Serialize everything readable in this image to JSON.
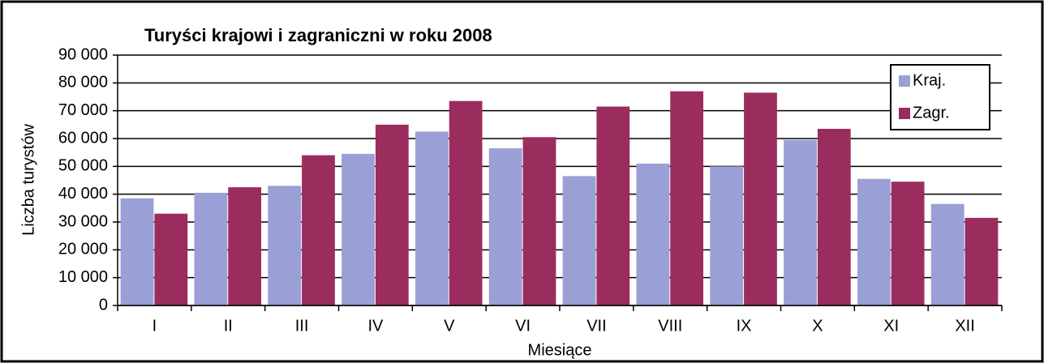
{
  "chart_data": {
    "type": "bar",
    "title": "Turyści krajowi i zagraniczni w roku 2008",
    "x_label": "Miesiące",
    "y_label": "Liczba turystów",
    "categories": [
      "I",
      "II",
      "III",
      "IV",
      "V",
      "VI",
      "VII",
      "VIII",
      "IX",
      "X",
      "XI",
      "XII"
    ],
    "series": [
      {
        "name": "Kraj.",
        "color": "#9a9fd6",
        "values": [
          38500,
          40500,
          43000,
          54500,
          62500,
          56500,
          46500,
          51000,
          50000,
          59500,
          45500,
          36500
        ]
      },
      {
        "name": "Zagr.",
        "color": "#9b2d5e",
        "values": [
          33000,
          42500,
          54000,
          65000,
          73500,
          60500,
          71500,
          77000,
          76500,
          63500,
          44500,
          31500
        ]
      }
    ],
    "ylim": [
      0,
      90000
    ],
    "yticks": [
      0,
      {
        "value": 10000,
        "label": "10 000"
      },
      {
        "value": 20000,
        "label": "20 000"
      },
      {
        "value": 30000,
        "label": "30 000"
      },
      {
        "value": 40000,
        "label": "40 000"
      },
      {
        "value": 50000,
        "label": "50 000"
      },
      {
        "value": 60000,
        "label": "60 000"
      },
      {
        "value": 70000,
        "label": "70 000"
      },
      {
        "value": 80000,
        "label": "80 000"
      },
      {
        "value": 90000,
        "label": "90 000"
      }
    ],
    "grid": true,
    "legend": "upper right"
  }
}
